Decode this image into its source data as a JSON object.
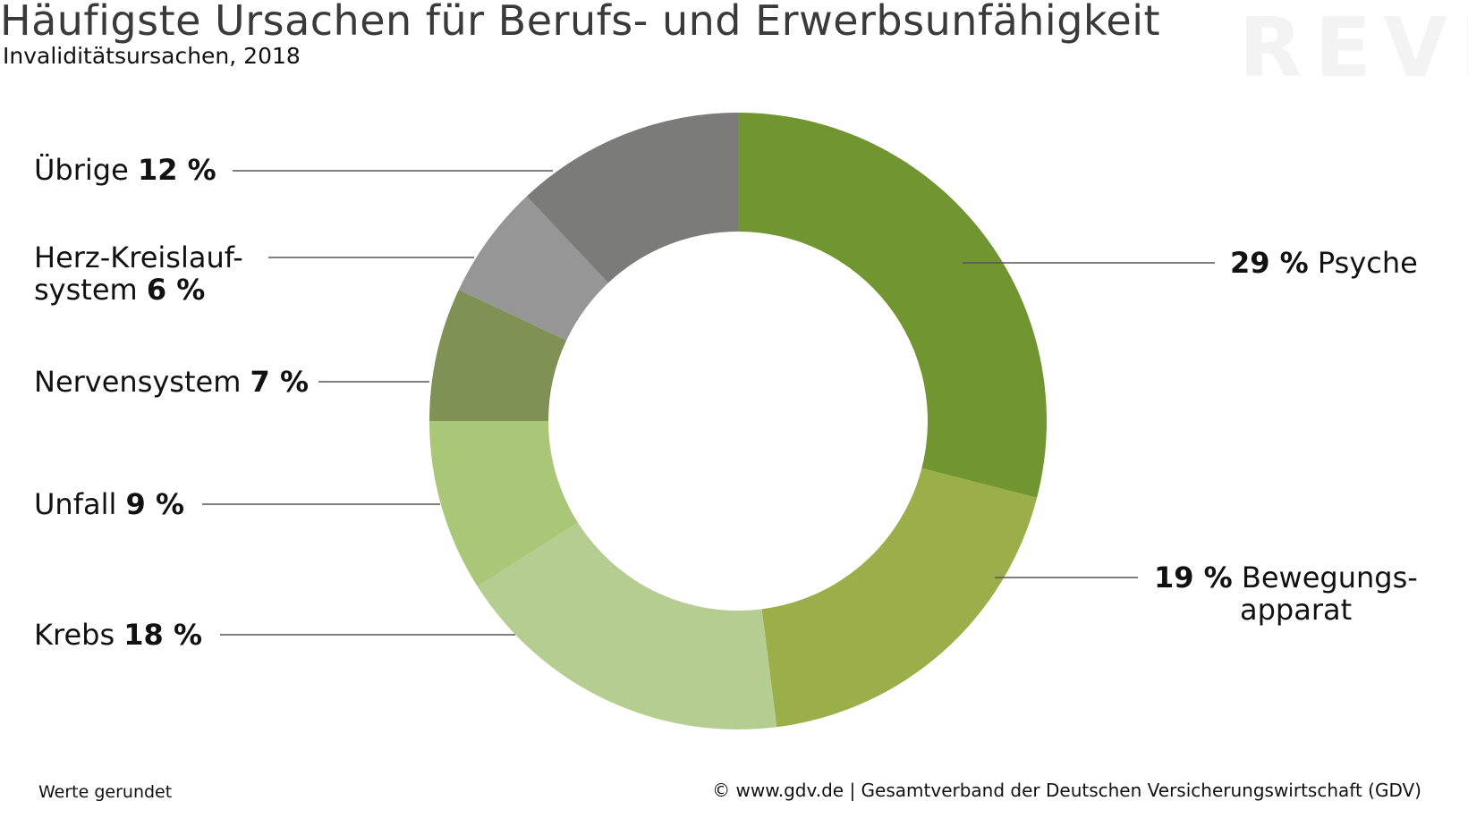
{
  "title": "Häufigste Ursachen für Berufs- und Erwerbsunfähigkeit",
  "subtitle": "Invaliditätsursachen, 2018",
  "watermark": "REVE",
  "footer": {
    "note": "Werte gerundet",
    "source": "© www.gdv.de | Gesamtverband der Deutschen Versicherungswirtschaft (GDV)"
  },
  "chart_data": {
    "type": "pie",
    "donut": true,
    "categories": [
      "Psyche",
      "Bewegungsapparat",
      "Krebs",
      "Unfall",
      "Nervensystem",
      "Herz-Kreislaufsystem",
      "Übrige"
    ],
    "values": [
      29,
      19,
      18,
      9,
      7,
      6,
      12
    ],
    "unit": "%",
    "colors": [
      "#719631",
      "#9aae4a",
      "#b6cd91",
      "#aac677",
      "#7f9155",
      "#969696",
      "#7b7b7a"
    ],
    "labels": {
      "psyche": {
        "value": "29 %",
        "name": "Psyche"
      },
      "bewegung": {
        "value": "19 %",
        "name_line1": "Bewegungs-",
        "name_line2": "apparat"
      },
      "krebs": {
        "name": "Krebs",
        "value": "18 %"
      },
      "unfall": {
        "name": "Unfall",
        "value": "9 %"
      },
      "nerven": {
        "name": "Nervensystem",
        "value": "7 %"
      },
      "herz": {
        "name_line1": "Herz-Kreislauf-",
        "name_line2": "system",
        "value": "6 %"
      },
      "uebrige": {
        "name": "Übrige",
        "value": "12 %"
      }
    }
  }
}
